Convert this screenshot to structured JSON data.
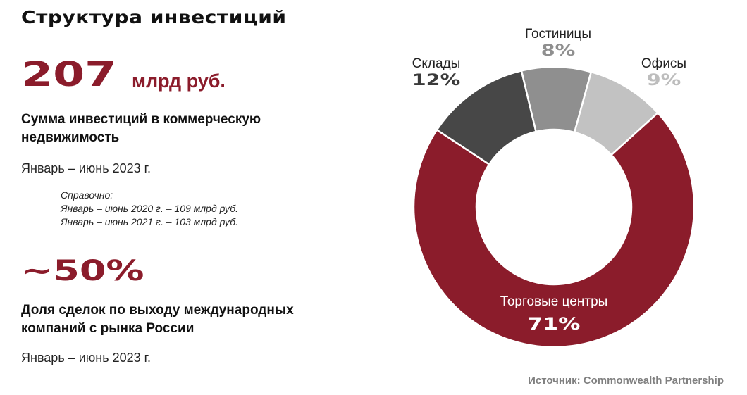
{
  "title": "Структура инвестиций",
  "block1": {
    "value": "207",
    "unit": "млрд руб.",
    "desc_line1": "Сумма инвестиций в коммерческую",
    "desc_line2": "недвижимость",
    "period": "Январь – июнь 2023 г.",
    "ref_title": "Справочно:",
    "ref_lines": [
      "Январь – июнь 2020 г. – 109 млрд руб.",
      "Январь – июнь 2021 г. – 103 млрд руб."
    ]
  },
  "block2": {
    "value": "~50%",
    "desc_line1": "Доля сделок по выходу международных",
    "desc_line2": "компаний с рынка России",
    "period": "Январь – июнь 2023 г."
  },
  "source": "Источник: Commonwealth Partnership",
  "chart_data": {
    "type": "pie",
    "donut": true,
    "start_angle_deg": -13.4,
    "direction": "clockwise",
    "slices": [
      {
        "name": "Гостиницы",
        "value": 8,
        "label": "8%",
        "color": "#8f8f8f",
        "text_color": "#8f8f8f"
      },
      {
        "name": "Офисы",
        "value": 9,
        "label": "9%",
        "color": "#c2c2c2",
        "text_color": "#bdbdbd"
      },
      {
        "name": "Торговые центры",
        "value": 71,
        "label": "71%",
        "color": "#8b1c2b",
        "text_color": "#ffffff"
      },
      {
        "name": "Склады",
        "value": 12,
        "label": "12%",
        "color": "#474747",
        "text_color": "#3a3a3a"
      }
    ]
  }
}
